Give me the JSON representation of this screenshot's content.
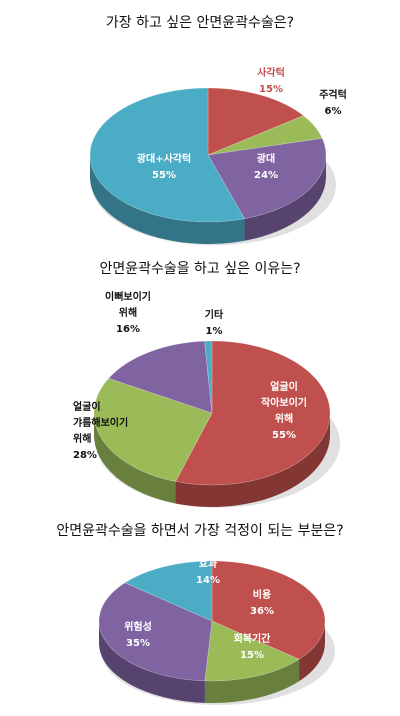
{
  "colors": {
    "red": "#C0504D",
    "green": "#9BBB59",
    "purple": "#8064A2",
    "blue": "#4BACC6"
  },
  "chart_data": [
    {
      "type": "pie",
      "title": "가장 하고 싶은 안면윤곽수술은?",
      "slices": [
        {
          "label": "사각턱",
          "value": 15,
          "value_label": "15%",
          "color": "#C0504D"
        },
        {
          "label": "주걱턱",
          "value": 6,
          "value_label": "6%",
          "color": "#9BBB59"
        },
        {
          "label": "광대",
          "value": 24,
          "value_label": "24%",
          "color": "#8064A2"
        },
        {
          "label": "광대+사각턱",
          "value": 55,
          "value_label": "55%",
          "color": "#4BACC6"
        }
      ]
    },
    {
      "type": "pie",
      "title": "안면윤곽수술을 하고 싶은 이유는?",
      "slices": [
        {
          "label": "얼굴이 작아보이기 위해",
          "value": 55,
          "value_label": "55%",
          "color": "#C0504D"
        },
        {
          "label": "얼굴이 갸름해보이기 위해",
          "value": 28,
          "value_label": "28%",
          "color": "#9BBB59"
        },
        {
          "label": "이뻐보이기 위해",
          "value": 16,
          "value_label": "16%",
          "color": "#8064A2"
        },
        {
          "label": "기타",
          "value": 1,
          "value_label": "1%",
          "color": "#4BACC6"
        }
      ]
    },
    {
      "type": "pie",
      "title": "안면윤곽수술을 하면서 가장 걱정이 되는 부분은?",
      "slices": [
        {
          "label": "비용",
          "value": 36,
          "value_label": "36%",
          "color": "#C0504D"
        },
        {
          "label": "회복기간",
          "value": 15,
          "value_label": "15%",
          "color": "#9BBB59"
        },
        {
          "label": "위험성",
          "value": 35,
          "value_label": "35%",
          "color": "#8064A2"
        },
        {
          "label": "효과",
          "value": 14,
          "value_label": "14%",
          "color": "#4BACC6"
        }
      ]
    }
  ]
}
